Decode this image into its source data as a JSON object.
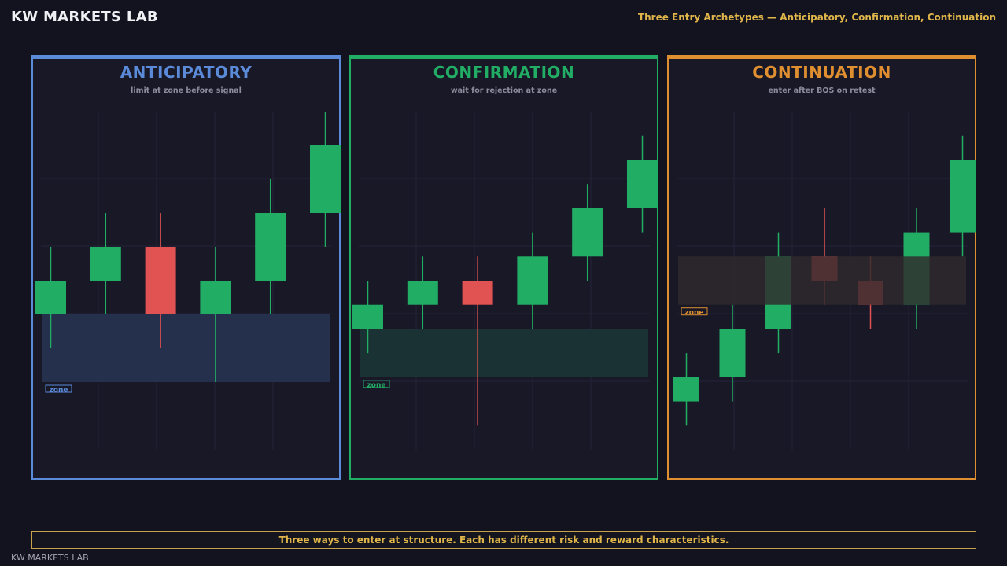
{
  "header": {
    "brand": "KW MARKETS LAB",
    "subtitle": "Three Entry Archetypes — Anticipatory, Confirmation, Continuation"
  },
  "footer": {
    "banner": "Three ways to enter at structure. Each has different risk and reward characteristics.",
    "brand": "KW MARKETS LAB"
  },
  "colors": {
    "bull": "#22ad65",
    "bear": "#e15252",
    "anticipatory": "#5a8ad8",
    "confirmation": "#22ad65",
    "continuation": "#e08f30",
    "grid": "#24243a"
  },
  "chart_data": [
    {
      "type": "candlestick",
      "title": "ANTICIPATORY",
      "subtitle": "limit at zone before signal",
      "accent": "#5a8ad8",
      "y_range": [
        0,
        10
      ],
      "zone": {
        "low": 2,
        "high": 4,
        "label": "zone",
        "fill": "#25304d"
      },
      "candles": [
        {
          "open": 4.0,
          "close": 5.0,
          "high": 6.0,
          "low": 3.0
        },
        {
          "open": 5.0,
          "close": 6.0,
          "high": 7.0,
          "low": 4.0
        },
        {
          "open": 6.0,
          "close": 4.0,
          "high": 7.0,
          "low": 3.0
        },
        {
          "open": 4.0,
          "close": 5.0,
          "high": 6.0,
          "low": 2.0
        },
        {
          "open": 5.0,
          "close": 7.0,
          "high": 8.0,
          "low": 4.0
        },
        {
          "open": 7.0,
          "close": 9.0,
          "high": 10.0,
          "low": 6.0
        }
      ]
    },
    {
      "type": "candlestick",
      "title": "CONFIRMATION",
      "subtitle": "wait for rejection at zone",
      "accent": "#22ad65",
      "y_range": [
        0,
        14
      ],
      "zone": {
        "low": 3,
        "high": 5,
        "label": "zone",
        "fill": "#1a3233"
      },
      "candles": [
        {
          "open": 5.0,
          "close": 6.0,
          "high": 7.0,
          "low": 4.0
        },
        {
          "open": 6.0,
          "close": 7.0,
          "high": 8.0,
          "low": 5.0
        },
        {
          "open": 7.0,
          "close": 6.0,
          "high": 8.0,
          "low": 1.0
        },
        {
          "open": 6.0,
          "close": 8.0,
          "high": 9.0,
          "low": 5.0
        },
        {
          "open": 8.0,
          "close": 10.0,
          "high": 11.0,
          "low": 7.0
        },
        {
          "open": 10.0,
          "close": 12.0,
          "high": 13.0,
          "low": 9.0
        }
      ]
    },
    {
      "type": "candlestick",
      "title": "CONTINUATION",
      "subtitle": "enter after BOS on retest",
      "accent": "#e08f30",
      "y_range": [
        0,
        14
      ],
      "zone": {
        "low": 6,
        "high": 8,
        "label": "zone",
        "fill": "#302a2c"
      },
      "candles": [
        {
          "open": 2.0,
          "close": 3.0,
          "high": 4.0,
          "low": 1.0
        },
        {
          "open": 3.0,
          "close": 5.0,
          "high": 6.0,
          "low": 2.0
        },
        {
          "open": 5.0,
          "close": 8.0,
          "high": 9.0,
          "low": 4.0
        },
        {
          "open": 8.0,
          "close": 7.0,
          "high": 10.0,
          "low": 6.0
        },
        {
          "open": 7.0,
          "close": 6.0,
          "high": 8.0,
          "low": 5.0
        },
        {
          "open": 6.0,
          "close": 9.0,
          "high": 10.0,
          "low": 5.0
        },
        {
          "open": 9.0,
          "close": 12.0,
          "high": 13.0,
          "low": 8.0
        }
      ]
    }
  ]
}
